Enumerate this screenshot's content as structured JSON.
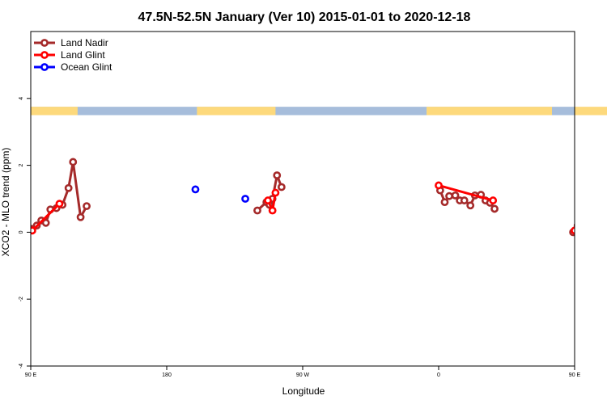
{
  "chart_data": {
    "type": "line",
    "title": "47.5N-52.5N January (Ver 10)   2015-01-01 to 2020-12-18",
    "xlabel": "Longitude",
    "ylabel": "XCO2 - MLO trend (ppm)",
    "xlim": [
      90,
      450
    ],
    "ylim": [
      -4,
      6
    ],
    "x_ticks": [
      {
        "value": 90,
        "label": "90 E"
      },
      {
        "value": 180,
        "label": "180"
      },
      {
        "value": 270,
        "label": "90 W"
      },
      {
        "value": 360,
        "label": "0"
      },
      {
        "value": 450,
        "label": "90 E"
      },
      {
        "value": 540,
        "label": "180"
      }
    ],
    "y_ticks": [
      {
        "value": -4,
        "label": "-4"
      },
      {
        "value": -2,
        "label": "-2"
      },
      {
        "value": 0,
        "label": "0"
      },
      {
        "value": 2,
        "label": "2"
      },
      {
        "value": 4,
        "label": "4"
      }
    ],
    "legend_position": "top-left",
    "land_ocean_band": {
      "y_range": [
        3.5,
        3.75
      ],
      "land_color": "#fdd97c",
      "ocean_color": "#a6bddb",
      "land_segments": [
        [
          90,
          121
        ],
        [
          200,
          252
        ],
        [
          352,
          435
        ],
        [
          450,
          481
        ]
      ]
    },
    "series": [
      {
        "name": "Land Nadir",
        "color": "#a52a2a",
        "segments": [
          [
            [
              91,
              0.1
            ],
            [
              94,
              0.2
            ],
            [
              97,
              0.35
            ],
            [
              100,
              0.28
            ],
            [
              103,
              0.68
            ],
            [
              107,
              0.72
            ],
            [
              111,
              0.82
            ],
            [
              115,
              1.32
            ],
            [
              118,
              2.1
            ],
            [
              123,
              0.45
            ],
            [
              127,
              0.78
            ]
          ],
          [
            [
              240,
              0.65
            ],
            [
              246,
              0.9
            ],
            [
              248,
              0.82
            ],
            [
              250,
              1.0
            ],
            [
              253,
              1.7
            ],
            [
              256,
              1.35
            ]
          ],
          [
            [
              361,
              1.25
            ],
            [
              364,
              0.9
            ],
            [
              367,
              1.08
            ],
            [
              371,
              1.1
            ],
            [
              374,
              0.95
            ],
            [
              377,
              0.95
            ],
            [
              381,
              0.8
            ],
            [
              384,
              1.1
            ],
            [
              388,
              1.12
            ],
            [
              391,
              0.95
            ],
            [
              394,
              0.88
            ],
            [
              397,
              0.7
            ]
          ],
          [
            [
              449,
              0.0
            ],
            [
              452,
              0.2
            ],
            [
              455,
              0.35
            ],
            [
              458,
              0.28
            ],
            [
              461,
              0.68
            ],
            [
              465,
              0.72
            ],
            [
              469,
              0.82
            ],
            [
              473,
              1.32
            ],
            [
              476,
              2.1
            ],
            [
              481,
              0.45
            ],
            [
              485,
              0.78
            ]
          ]
        ]
      },
      {
        "name": "Land Glint",
        "color": "#ff0000",
        "segments": [
          [
            [
              91,
              0.05
            ],
            [
              109,
              0.85
            ]
          ],
          [
            [
              247,
              0.95
            ],
            [
              250,
              0.65
            ],
            [
              252,
              1.18
            ]
          ],
          [
            [
              360,
              1.4
            ],
            [
              396,
              0.95
            ]
          ],
          [
            [
              450,
              0.05
            ],
            [
              467,
              0.85
            ]
          ]
        ]
      },
      {
        "name": "Ocean Glint",
        "color": "#0000ff",
        "segments": [
          [
            [
              199,
              1.28
            ]
          ],
          [
            [
              232,
              1.0
            ]
          ]
        ]
      }
    ]
  }
}
